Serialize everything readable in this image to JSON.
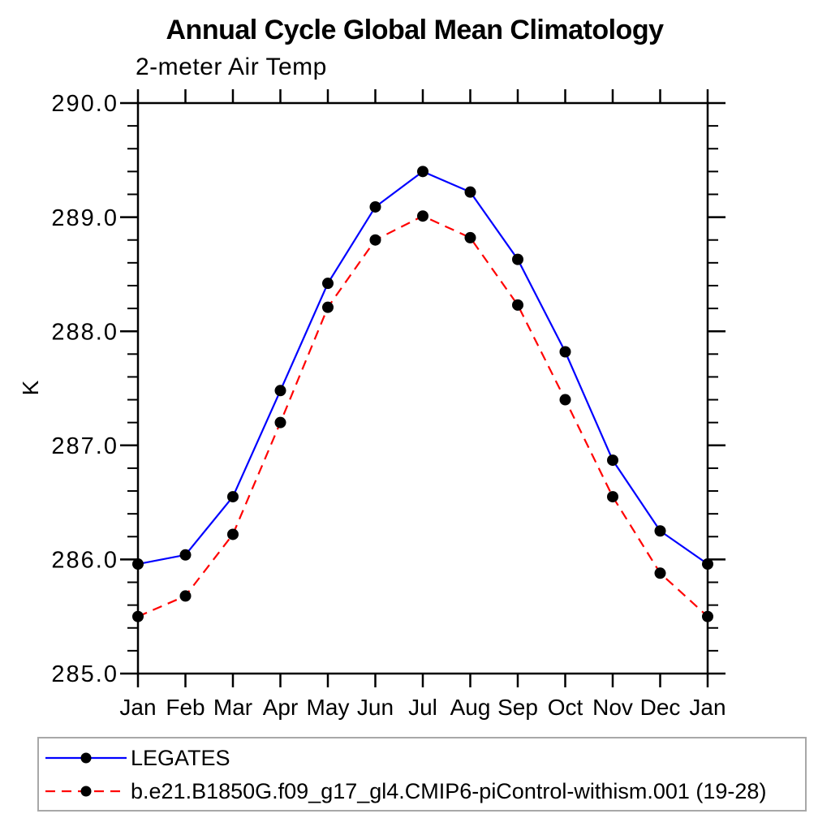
{
  "chart_data": {
    "type": "line",
    "title": "Annual Cycle Global Mean Climatology",
    "subtitle": "2-meter Air Temp",
    "ylabel": "K",
    "xlabel": "",
    "categories": [
      "Jan",
      "Feb",
      "Mar",
      "Apr",
      "May",
      "Jun",
      "Jul",
      "Aug",
      "Sep",
      "Oct",
      "Nov",
      "Dec",
      "Jan"
    ],
    "ylim": [
      285.0,
      290.0
    ],
    "ytick_major": 1.0,
    "ytick_minor": 0.2,
    "ytick_labels": [
      "285.0",
      "286.0",
      "287.0",
      "288.0",
      "289.0",
      "290.0"
    ],
    "grid": false,
    "legend_position": "bottom-left-box",
    "axis_color": "#000000",
    "legend_border_color": "#a8a8a8",
    "series": [
      {
        "name": "LEGATES",
        "color": "#0000ff",
        "line_style": "solid",
        "marker": "circle",
        "marker_color": "#000000",
        "values": [
          285.96,
          286.04,
          286.55,
          287.48,
          288.42,
          289.09,
          289.4,
          289.22,
          288.63,
          287.82,
          286.87,
          286.25,
          285.96
        ]
      },
      {
        "name": "b.e21.B1850G.f09_g17_gl4.CMIP6-piControl-withism.001 (19-28)",
        "color": "#ff0000",
        "line_style": "dashed",
        "marker": "circle",
        "marker_color": "#000000",
        "values": [
          285.5,
          285.68,
          286.22,
          287.2,
          288.21,
          288.8,
          289.01,
          288.82,
          288.23,
          287.4,
          286.55,
          285.88,
          285.5
        ]
      }
    ]
  }
}
